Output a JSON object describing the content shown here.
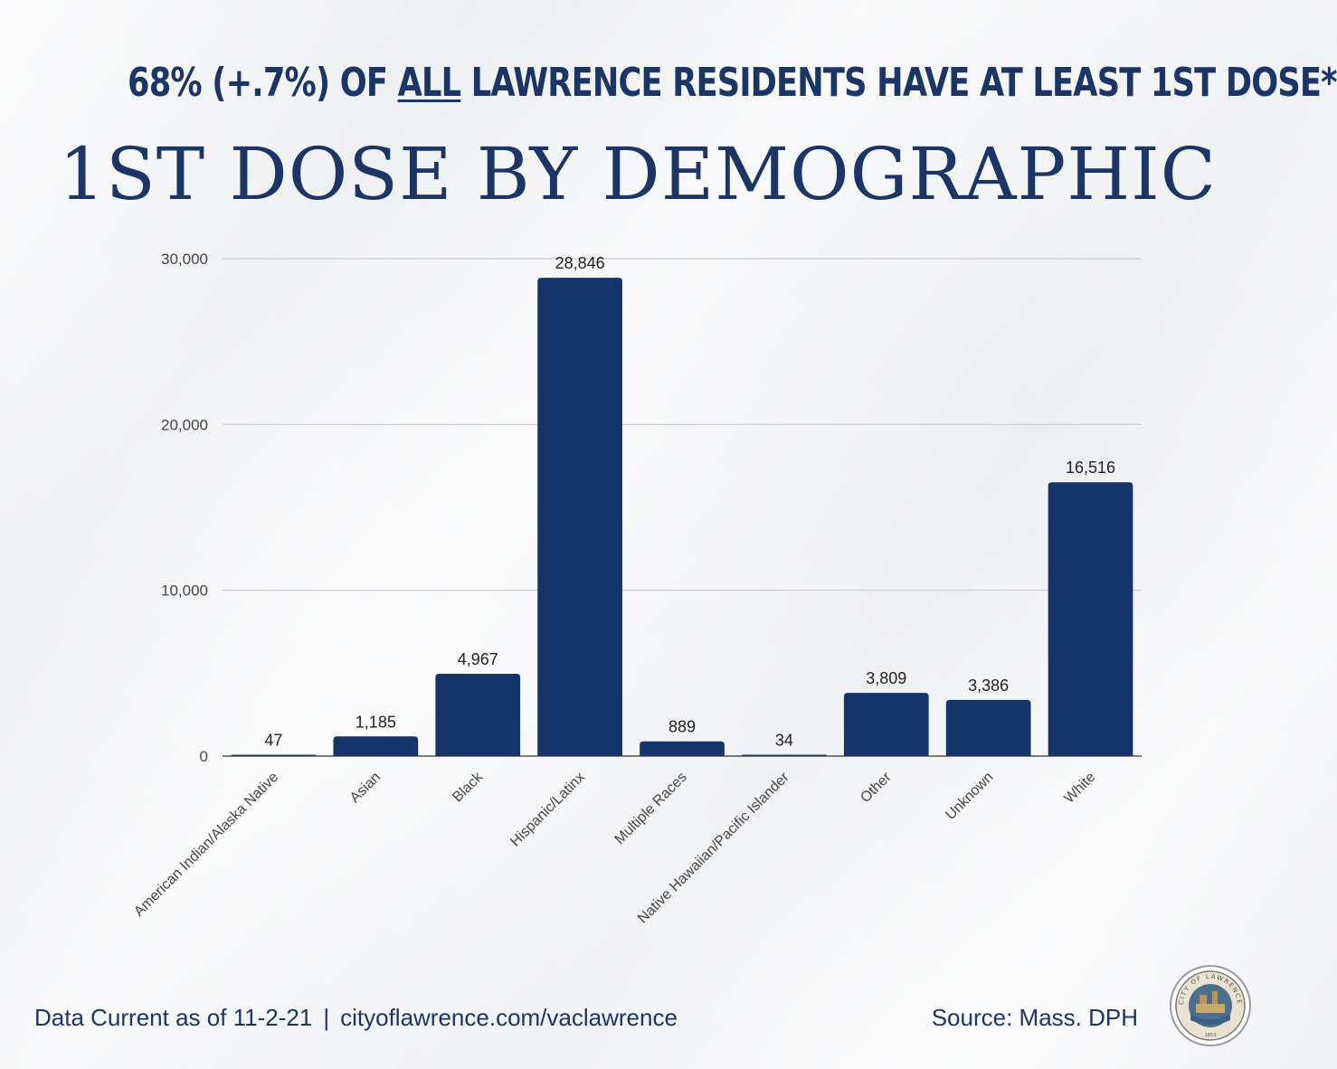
{
  "header": {
    "headline_pre": "68% (+.7%) OF ",
    "headline_emph": "ALL",
    "headline_post": " LAWRENCE RESIDENTS HAVE AT LEAST 1ST DOSE*",
    "title": "1ST DOSE BY DEMOGRAPHIC"
  },
  "footer": {
    "data_current": "Data Current as of 11-2-21",
    "separator": "|",
    "website": "cityoflawrence.com/vaclawrence",
    "source": "Source: Mass. DPH"
  },
  "seal": {
    "text": "CITY OF LAWRENCE",
    "year": "1853"
  },
  "colors": {
    "bar": "#14346a",
    "text": "#1a3566",
    "grid": "#c8c9cc",
    "axis_text": "#444444"
  },
  "chart_data": {
    "type": "bar",
    "title": "1ST DOSE BY DEMOGRAPHIC",
    "xlabel": "",
    "ylabel": "",
    "ylim": [
      0,
      30000
    ],
    "yticks": [
      0,
      10000,
      20000,
      30000
    ],
    "ytick_labels": [
      "0",
      "10,000",
      "20,000",
      "30,000"
    ],
    "grid": true,
    "categories": [
      "American Indian/Alaska Native",
      "Asian",
      "Black",
      "Hispanic/Latinx",
      "Multiple Races",
      "Native Hawaiian/Pacific Islander",
      "Other",
      "Unknown",
      "White"
    ],
    "values": [
      47,
      1185,
      4967,
      28846,
      889,
      34,
      3809,
      3386,
      16516
    ],
    "value_labels": [
      "47",
      "1,185",
      "4,967",
      "28,846",
      "889",
      "34",
      "3,809",
      "3,386",
      "16,516"
    ]
  }
}
